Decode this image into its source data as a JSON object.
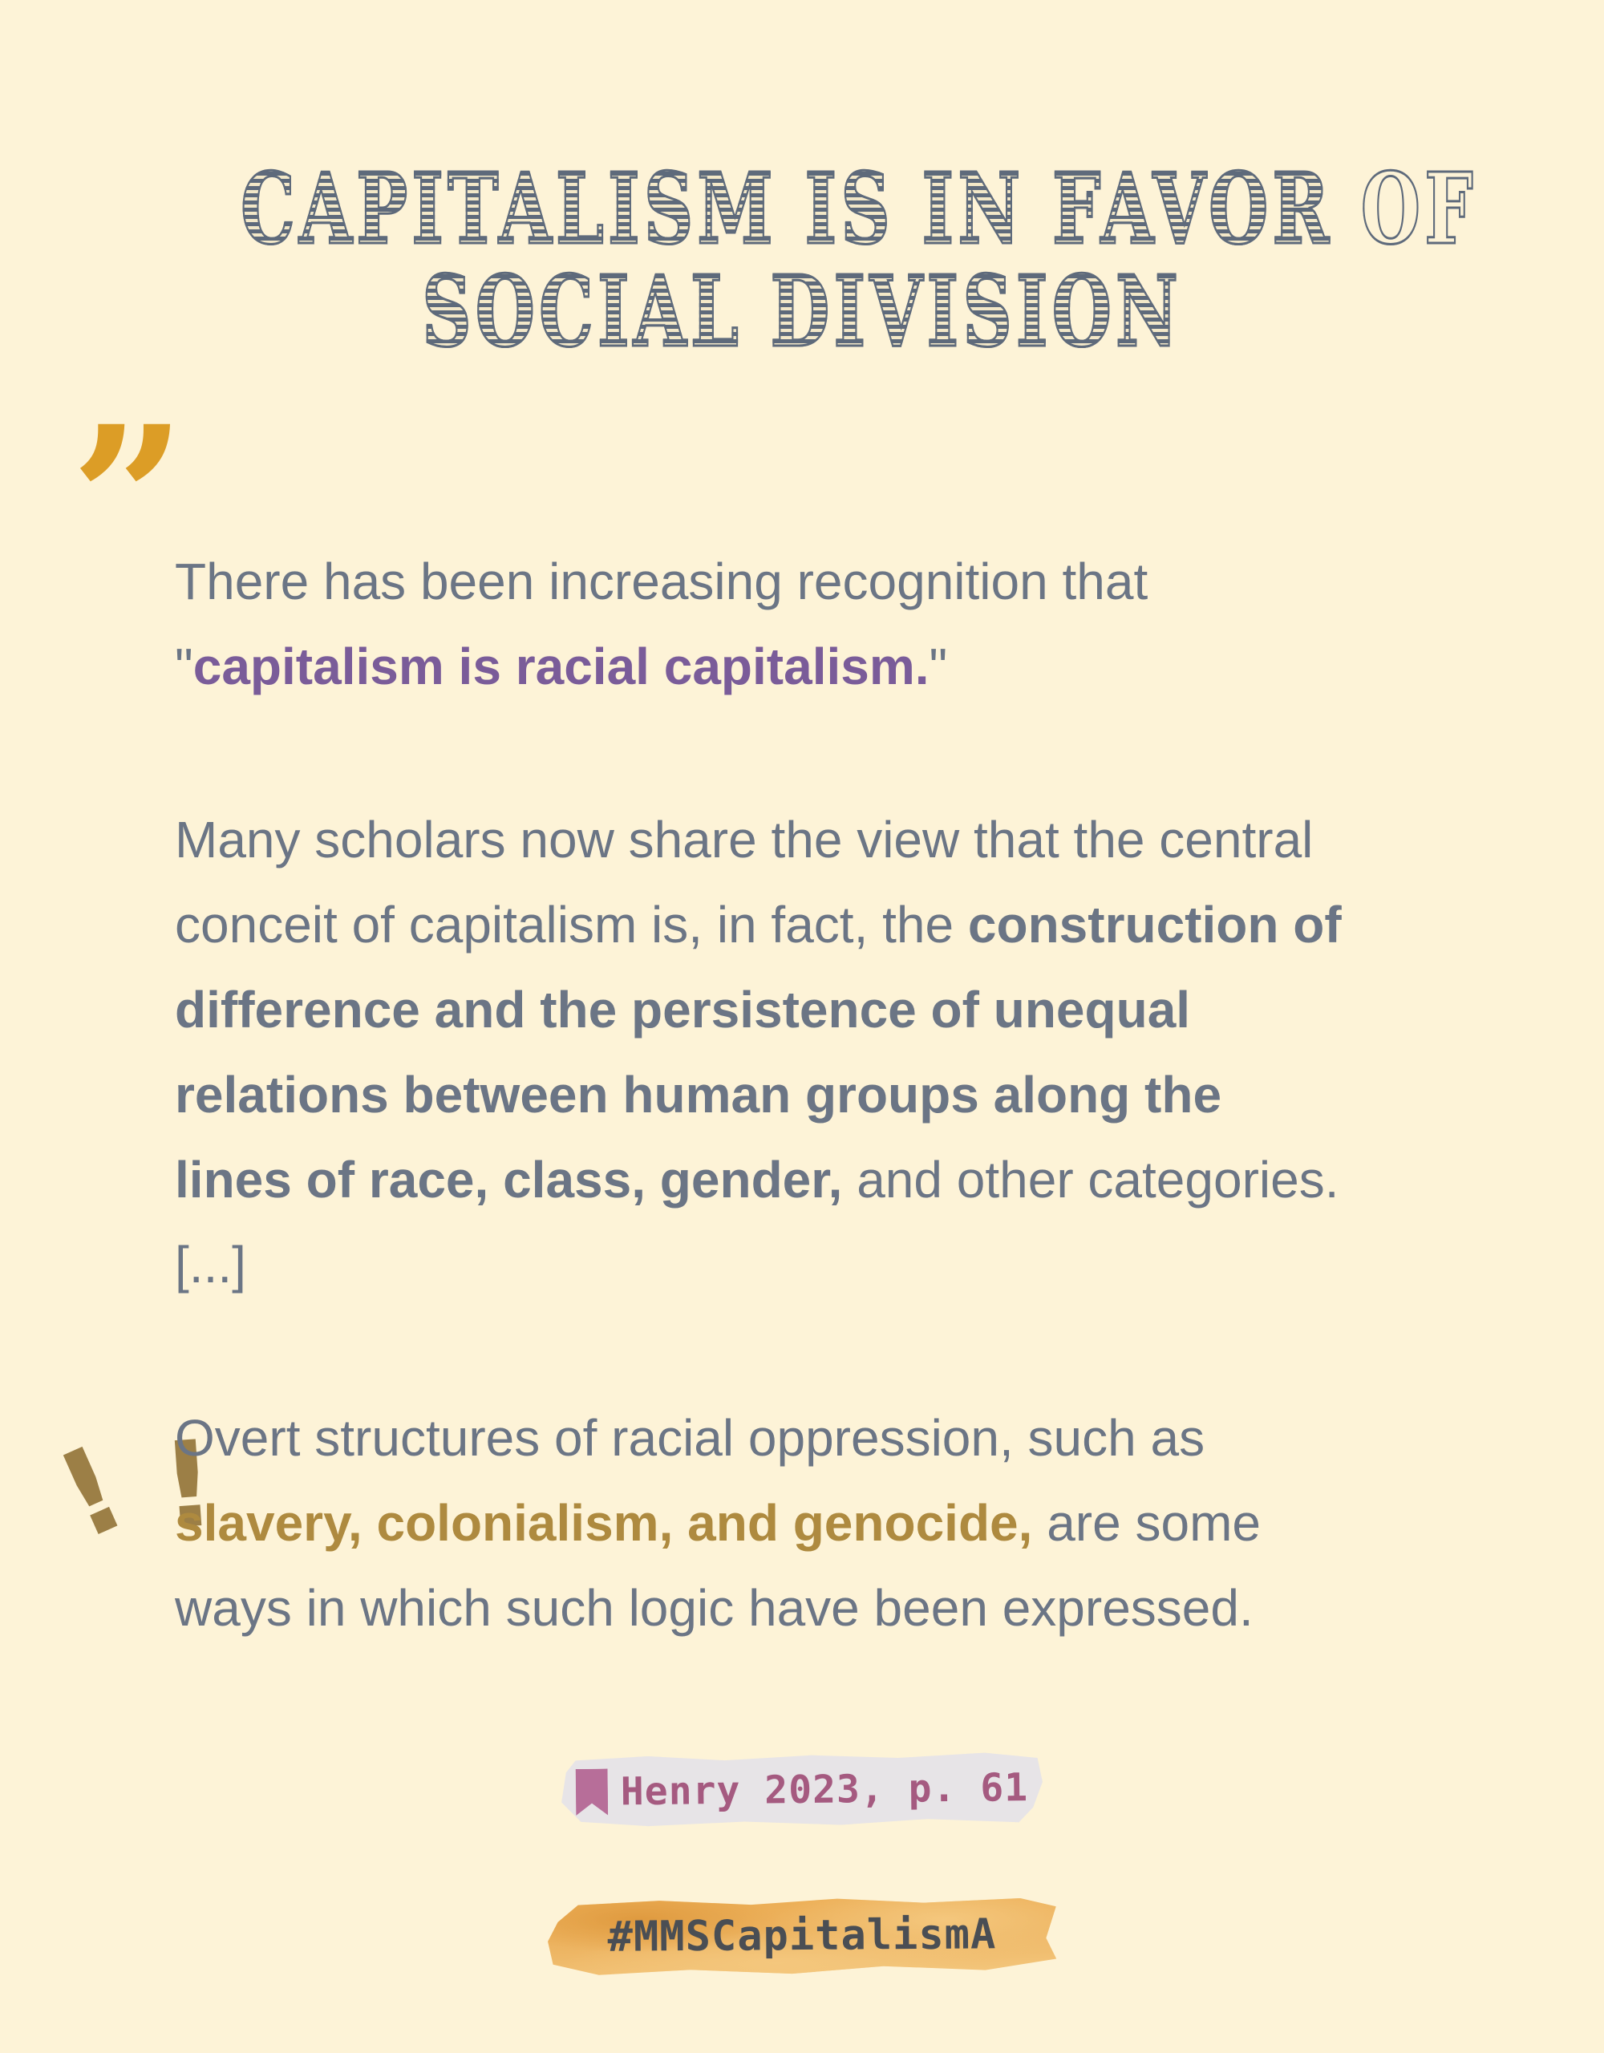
{
  "colors": {
    "bg": "#FDF3D7",
    "title-gray": "#5E6A7B",
    "body-gray": "#6B7585",
    "purple": "#7A5C99",
    "gold-text": "#AE8A3F",
    "quote-gold": "#DC9D26",
    "exclaim-gold": "#9C7F46",
    "cite-text": "#A55A80",
    "cite-icon": "#B76E99",
    "paper": "#E7E4E7",
    "hashtag-text": "#4A4E54",
    "orange1": "#ECAC52",
    "orange2": "#F4C77D",
    "orange3": "#DF9A3F"
  },
  "title": {
    "line1": "CAPITALISM IS IN FAVOR OF",
    "line2": "SOCIAL DIVISION"
  },
  "decorations": {
    "quote_mark": "”",
    "exclaim1": "!",
    "exclaim2": "!"
  },
  "quote": {
    "paragraphs": [
      {
        "lines": [
          [
            {
              "t": "There has been increasing recognition that",
              "s": "gray"
            }
          ],
          [
            {
              "t": "\"",
              "s": "gray"
            },
            {
              "t": "capitalism is racial capitalism.",
              "s": "purple"
            },
            {
              "t": "\"",
              "s": "gray"
            }
          ]
        ]
      },
      {
        "lines": [
          [
            {
              "t": "Many scholars now share the view that the central",
              "s": "gray"
            }
          ],
          [
            {
              "t": "conceit of capitalism is, in fact, the ",
              "s": "gray"
            },
            {
              "t": "construction of",
              "s": "graybold"
            }
          ],
          [
            {
              "t": "difference and the persistence of unequal",
              "s": "graybold"
            }
          ],
          [
            {
              "t": "relations between human groups along the",
              "s": "graybold"
            }
          ],
          [
            {
              "t": "lines of race, class, gender,",
              "s": "graybold"
            },
            {
              "t": " and other categories.",
              "s": "gray"
            }
          ],
          [
            {
              "t": "[...]",
              "s": "gray"
            }
          ]
        ]
      },
      {
        "lines": [
          [
            {
              "t": "Overt structures of racial oppression, such as",
              "s": "gray"
            }
          ],
          [
            {
              "t": "slavery, colonialism,  and genocide,",
              "s": "gold"
            },
            {
              "t": " are some",
              "s": "gray"
            }
          ],
          [
            {
              "t": "ways in which such logic have been expressed.",
              "s": "gray"
            }
          ]
        ]
      }
    ]
  },
  "citation": {
    "label": "Henry 2023, p. 61",
    "icon": "bookmark-icon"
  },
  "hashtag": {
    "label": "#MMSCapitalismA"
  }
}
